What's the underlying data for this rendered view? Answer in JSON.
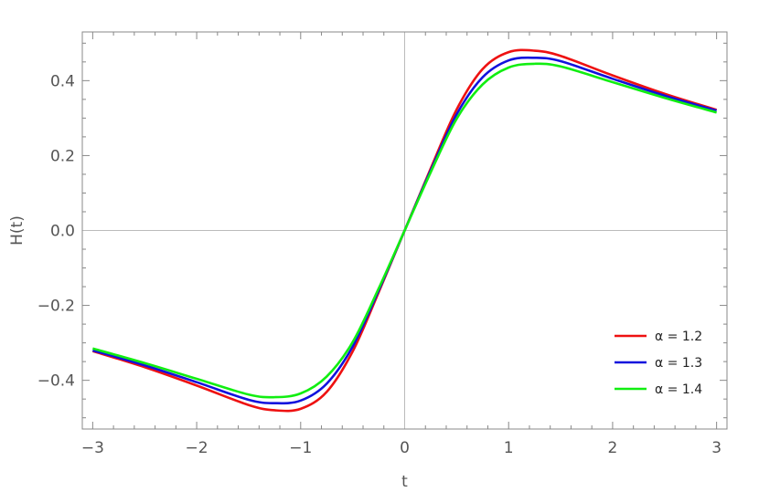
{
  "chart_data": {
    "type": "line",
    "title": "",
    "xlabel": "t",
    "ylabel": "H(t)",
    "xlim": [
      -3.1,
      3.1
    ],
    "ylim": [
      -0.53,
      0.53
    ],
    "x_ticks": [
      -3,
      -2,
      -1,
      0,
      1,
      2,
      3
    ],
    "x_tick_labels": [
      "−3",
      "−2",
      "−1",
      "0",
      "1",
      "2",
      "3"
    ],
    "y_ticks": [
      -0.4,
      -0.2,
      0.0,
      0.2,
      0.4
    ],
    "y_tick_labels": [
      "−0.4",
      "−0.2",
      "0.0",
      "0.2",
      "0.4"
    ],
    "grid": false,
    "legend_position": "bottom-right",
    "x": [
      -3,
      -2.5,
      -2,
      -1.5,
      -1.25,
      -1,
      -0.75,
      -0.5,
      -0.25,
      0,
      0.25,
      0.5,
      0.75,
      1,
      1.25,
      1.5,
      2,
      2.5,
      3
    ],
    "series": [
      {
        "name": "α = 1.2",
        "color": "#ee1111",
        "values": [
          -0.322,
          -0.365,
          -0.414,
          -0.466,
          -0.48,
          -0.476,
          -0.431,
          -0.323,
          -0.165,
          0.0,
          0.165,
          0.323,
          0.431,
          0.476,
          0.48,
          0.466,
          0.414,
          0.365,
          0.322
        ]
      },
      {
        "name": "α = 1.3",
        "color": "#1111dd",
        "values": [
          -0.32,
          -0.36,
          -0.405,
          -0.452,
          -0.461,
          -0.454,
          -0.409,
          -0.31,
          -0.16,
          0.0,
          0.16,
          0.31,
          0.409,
          0.454,
          0.461,
          0.452,
          0.405,
          0.36,
          0.32
        ]
      },
      {
        "name": "α = 1.4",
        "color": "#11ee11",
        "values": [
          -0.315,
          -0.354,
          -0.396,
          -0.438,
          -0.445,
          -0.435,
          -0.39,
          -0.298,
          -0.155,
          0.0,
          0.155,
          0.298,
          0.39,
          0.435,
          0.445,
          0.438,
          0.396,
          0.354,
          0.315
        ]
      }
    ]
  }
}
